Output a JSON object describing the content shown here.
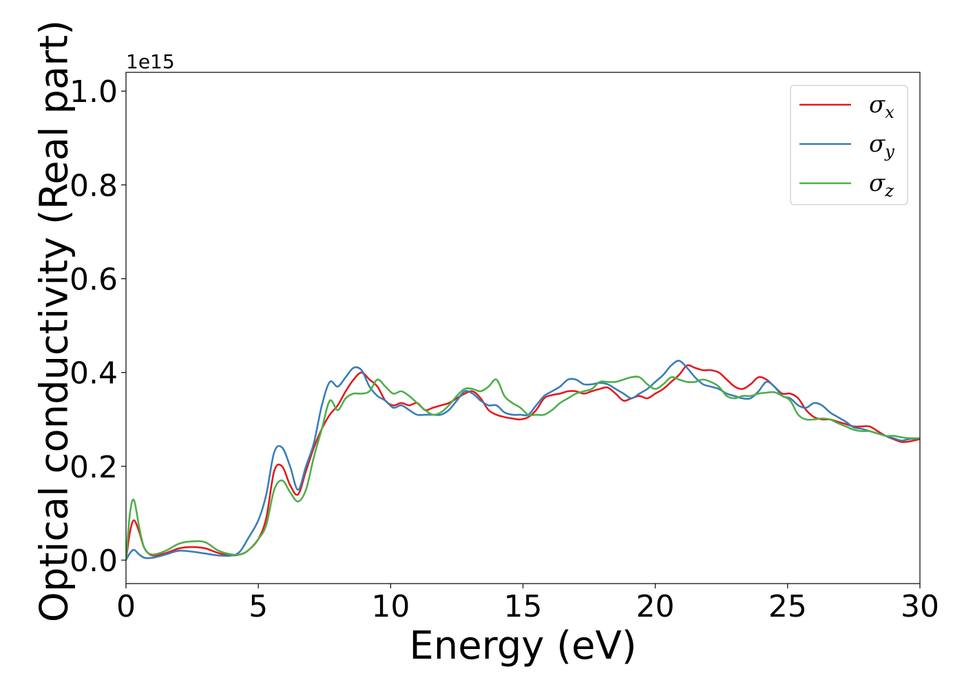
{
  "chart_data": {
    "type": "line",
    "xlabel": "Energy (eV)",
    "ylabel": "Optical conductivity (Real part)",
    "y_offset_label": "1e15",
    "xlim": [
      0,
      30
    ],
    "ylim": [
      -0.05,
      1.04
    ],
    "y_scale_factor": 1000000000000000.0,
    "grid": false,
    "legend_position": "top-right",
    "x_ticks": [
      "0",
      "5",
      "10",
      "15",
      "20",
      "25",
      "30"
    ],
    "y_ticks": [
      "0.0",
      "0.2",
      "0.4",
      "0.6",
      "0.8",
      "1.0"
    ],
    "x": [
      0,
      0.15,
      0.3,
      0.5,
      0.7,
      1.0,
      1.5,
      2.0,
      2.5,
      3.0,
      3.5,
      4.0,
      4.3,
      4.6,
      5.0,
      5.3,
      5.6,
      5.9,
      6.2,
      6.5,
      6.8,
      7.1,
      7.4,
      7.7,
      8.0,
      8.3,
      8.6,
      8.9,
      9.2,
      9.5,
      9.8,
      10.1,
      10.4,
      10.7,
      11.0,
      11.3,
      11.6,
      11.9,
      12.2,
      12.5,
      12.8,
      13.1,
      13.4,
      13.7,
      14.0,
      14.3,
      14.6,
      14.9,
      15.2,
      15.5,
      15.8,
      16.1,
      16.4,
      16.7,
      17.0,
      17.3,
      17.6,
      17.9,
      18.2,
      18.5,
      18.8,
      19.1,
      19.4,
      19.7,
      20.0,
      20.3,
      20.6,
      20.9,
      21.2,
      21.5,
      21.8,
      22.1,
      22.4,
      22.7,
      23.0,
      23.3,
      23.6,
      23.9,
      24.2,
      24.5,
      24.8,
      25.1,
      25.4,
      25.7,
      26.0,
      26.3,
      26.6,
      26.9,
      27.2,
      27.5,
      27.8,
      28.1,
      28.4,
      28.7,
      29.0,
      29.3,
      29.6,
      30.0
    ],
    "series": [
      {
        "name": "σx",
        "label_base": "σ",
        "label_sub": "x",
        "color": "#e41a1c",
        "values": [
          0.0,
          0.06,
          0.085,
          0.06,
          0.025,
          0.01,
          0.015,
          0.025,
          0.028,
          0.025,
          0.015,
          0.01,
          0.012,
          0.02,
          0.045,
          0.09,
          0.19,
          0.2,
          0.16,
          0.14,
          0.19,
          0.24,
          0.28,
          0.31,
          0.33,
          0.36,
          0.385,
          0.4,
          0.385,
          0.37,
          0.34,
          0.33,
          0.335,
          0.33,
          0.335,
          0.32,
          0.325,
          0.33,
          0.335,
          0.345,
          0.355,
          0.36,
          0.345,
          0.32,
          0.31,
          0.305,
          0.302,
          0.3,
          0.305,
          0.32,
          0.345,
          0.352,
          0.355,
          0.36,
          0.36,
          0.355,
          0.36,
          0.365,
          0.368,
          0.355,
          0.34,
          0.345,
          0.35,
          0.345,
          0.355,
          0.365,
          0.38,
          0.395,
          0.415,
          0.41,
          0.405,
          0.405,
          0.4,
          0.385,
          0.37,
          0.365,
          0.375,
          0.39,
          0.385,
          0.37,
          0.355,
          0.355,
          0.345,
          0.32,
          0.305,
          0.3,
          0.3,
          0.295,
          0.29,
          0.285,
          0.285,
          0.285,
          0.275,
          0.265,
          0.258,
          0.252,
          0.253,
          0.258
        ]
      },
      {
        "name": "σy",
        "label_base": "σ",
        "label_sub": "y",
        "color": "#377eb8",
        "values": [
          0.0,
          0.015,
          0.022,
          0.012,
          0.005,
          0.005,
          0.012,
          0.02,
          0.018,
          0.014,
          0.01,
          0.01,
          0.018,
          0.045,
          0.085,
          0.14,
          0.23,
          0.24,
          0.2,
          0.15,
          0.2,
          0.25,
          0.33,
          0.38,
          0.37,
          0.39,
          0.41,
          0.405,
          0.37,
          0.35,
          0.34,
          0.325,
          0.33,
          0.32,
          0.31,
          0.31,
          0.31,
          0.31,
          0.32,
          0.34,
          0.36,
          0.355,
          0.34,
          0.33,
          0.33,
          0.315,
          0.31,
          0.31,
          0.31,
          0.33,
          0.35,
          0.36,
          0.37,
          0.385,
          0.385,
          0.375,
          0.375,
          0.378,
          0.375,
          0.365,
          0.355,
          0.345,
          0.355,
          0.365,
          0.38,
          0.395,
          0.415,
          0.425,
          0.41,
          0.39,
          0.375,
          0.37,
          0.365,
          0.355,
          0.35,
          0.345,
          0.345,
          0.36,
          0.38,
          0.37,
          0.35,
          0.345,
          0.33,
          0.325,
          0.335,
          0.33,
          0.315,
          0.305,
          0.295,
          0.283,
          0.28,
          0.275,
          0.27,
          0.265,
          0.26,
          0.255,
          0.258,
          0.26
        ]
      },
      {
        "name": "σz",
        "label_base": "σ",
        "label_sub": "z",
        "color": "#4daf4a",
        "values": [
          0.0,
          0.1,
          0.128,
          0.07,
          0.025,
          0.012,
          0.02,
          0.035,
          0.04,
          0.038,
          0.02,
          0.012,
          0.012,
          0.02,
          0.045,
          0.075,
          0.15,
          0.17,
          0.145,
          0.125,
          0.15,
          0.22,
          0.28,
          0.34,
          0.32,
          0.345,
          0.355,
          0.355,
          0.36,
          0.385,
          0.37,
          0.355,
          0.36,
          0.35,
          0.335,
          0.32,
          0.31,
          0.315,
          0.33,
          0.35,
          0.365,
          0.365,
          0.36,
          0.37,
          0.385,
          0.35,
          0.335,
          0.325,
          0.31,
          0.31,
          0.31,
          0.32,
          0.335,
          0.345,
          0.355,
          0.36,
          0.365,
          0.38,
          0.38,
          0.38,
          0.385,
          0.39,
          0.39,
          0.375,
          0.365,
          0.375,
          0.39,
          0.385,
          0.38,
          0.38,
          0.385,
          0.38,
          0.37,
          0.35,
          0.345,
          0.35,
          0.35,
          0.355,
          0.357,
          0.358,
          0.35,
          0.34,
          0.31,
          0.3,
          0.3,
          0.302,
          0.3,
          0.292,
          0.285,
          0.278,
          0.275,
          0.275,
          0.27,
          0.265,
          0.265,
          0.262,
          0.26,
          0.26
        ]
      }
    ]
  }
}
